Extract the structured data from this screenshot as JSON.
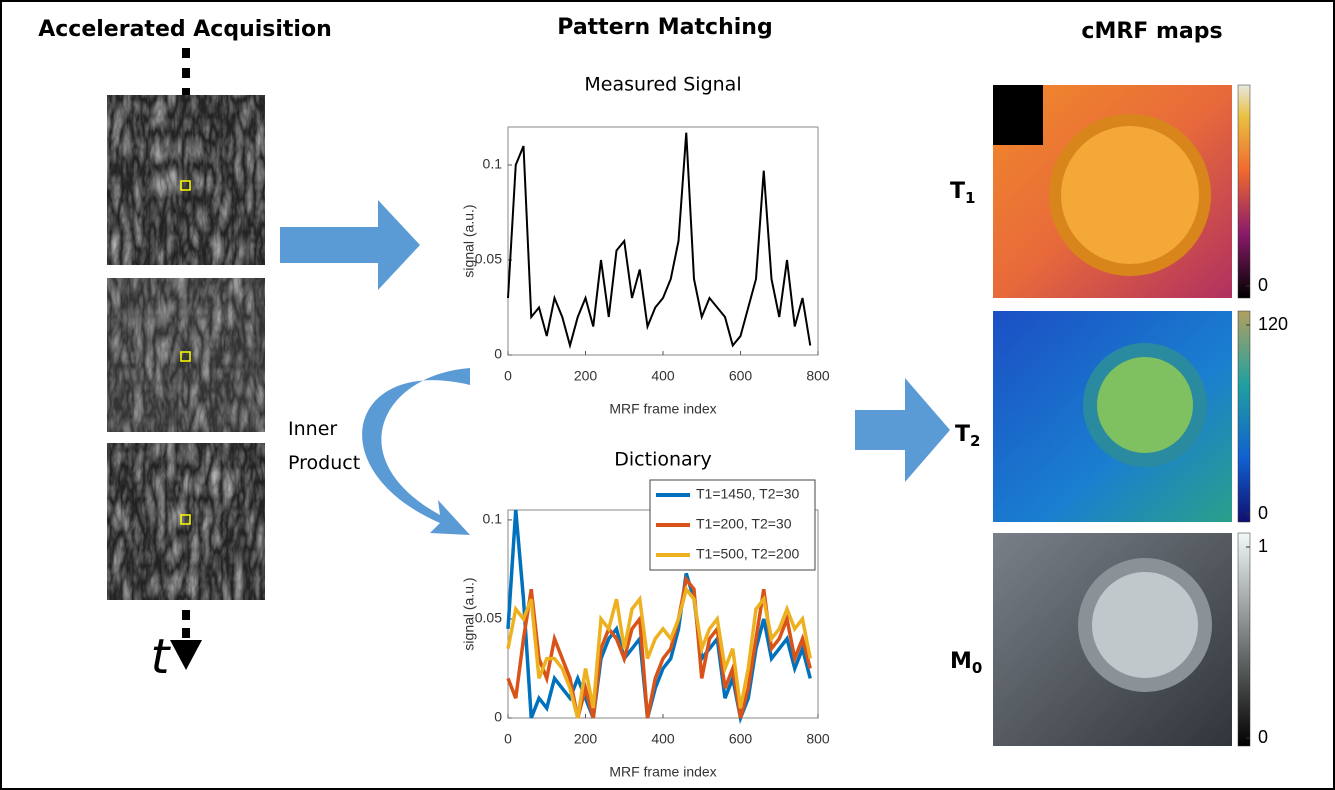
{
  "header": {
    "acquisition": "Accelerated Acquisition",
    "matching": "Pattern Matching",
    "maps": "cMRF maps"
  },
  "labels": {
    "time": "t",
    "inner_product": "Inner Product"
  },
  "charts": [
    {
      "type": "line",
      "title": "Measured Signal",
      "xlabel": "MRF frame index",
      "ylabel": "signal (a.u.)",
      "xlim": [
        0,
        800
      ],
      "ylim": [
        0,
        0.12
      ],
      "xticks": [
        0,
        200,
        400,
        600,
        800
      ],
      "yticks": [
        0,
        0.05,
        0.1
      ],
      "x": [
        0,
        20,
        40,
        60,
        80,
        100,
        120,
        140,
        160,
        180,
        200,
        220,
        240,
        260,
        280,
        300,
        320,
        340,
        360,
        380,
        400,
        420,
        440,
        460,
        480,
        500,
        520,
        540,
        560,
        580,
        600,
        620,
        640,
        660,
        680,
        700,
        720,
        740,
        760,
        780
      ],
      "series": [
        {
          "color": "#000000",
          "values": [
            0.03,
            0.1,
            0.11,
            0.02,
            0.025,
            0.01,
            0.03,
            0.02,
            0.005,
            0.02,
            0.03,
            0.015,
            0.05,
            0.02,
            0.055,
            0.06,
            0.03,
            0.045,
            0.015,
            0.025,
            0.03,
            0.04,
            0.06,
            0.117,
            0.04,
            0.02,
            0.03,
            0.025,
            0.02,
            0.005,
            0.01,
            0.025,
            0.04,
            0.097,
            0.04,
            0.02,
            0.05,
            0.015,
            0.03,
            0.005
          ]
        }
      ]
    },
    {
      "type": "line",
      "title": "Dictionary",
      "xlabel": "MRF frame index",
      "ylabel": "signal (a.u.)",
      "xlim": [
        0,
        800
      ],
      "ylim": [
        0,
        0.105
      ],
      "xticks": [
        0,
        200,
        400,
        600,
        800
      ],
      "yticks": [
        0,
        0.05,
        0.1
      ],
      "legend": "upper right",
      "x": [
        0,
        20,
        40,
        60,
        80,
        100,
        120,
        140,
        160,
        180,
        200,
        220,
        240,
        260,
        280,
        300,
        320,
        340,
        360,
        380,
        400,
        420,
        440,
        460,
        480,
        500,
        520,
        540,
        560,
        580,
        600,
        620,
        640,
        660,
        680,
        700,
        720,
        740,
        760,
        780
      ],
      "series": [
        {
          "name": "T1=1450, T2=30",
          "color": "#0072bd",
          "values": [
            0.045,
            0.105,
            0.06,
            0.0,
            0.01,
            0.005,
            0.02,
            0.015,
            0.01,
            0.02,
            0.01,
            0.0,
            0.03,
            0.04,
            0.045,
            0.03,
            0.035,
            0.04,
            0.0,
            0.015,
            0.025,
            0.03,
            0.045,
            0.073,
            0.06,
            0.03,
            0.035,
            0.04,
            0.01,
            0.02,
            0.0,
            0.01,
            0.035,
            0.05,
            0.03,
            0.035,
            0.04,
            0.025,
            0.035,
            0.02
          ]
        },
        {
          "name": "T1=200, T2=30",
          "color": "#d95319",
          "values": [
            0.02,
            0.01,
            0.04,
            0.065,
            0.03,
            0.02,
            0.04,
            0.03,
            0.02,
            0.0,
            0.015,
            0.0,
            0.035,
            0.045,
            0.04,
            0.03,
            0.045,
            0.05,
            0.0,
            0.02,
            0.03,
            0.035,
            0.05,
            0.07,
            0.065,
            0.02,
            0.04,
            0.045,
            0.015,
            0.025,
            0.0,
            0.015,
            0.04,
            0.065,
            0.035,
            0.04,
            0.05,
            0.03,
            0.04,
            0.025
          ]
        },
        {
          "name": "T1=500, T2=200",
          "color": "#edb120",
          "values": [
            0.035,
            0.055,
            0.05,
            0.06,
            0.02,
            0.03,
            0.03,
            0.025,
            0.015,
            0.0,
            0.025,
            0.005,
            0.05,
            0.045,
            0.06,
            0.035,
            0.055,
            0.06,
            0.03,
            0.04,
            0.045,
            0.04,
            0.05,
            0.065,
            0.06,
            0.035,
            0.045,
            0.05,
            0.025,
            0.035,
            0.005,
            0.025,
            0.055,
            0.06,
            0.04,
            0.045,
            0.055,
            0.045,
            0.05,
            0.03
          ]
        }
      ]
    }
  ],
  "maps": [
    {
      "symbol": "T",
      "subscript": "1",
      "colorbar_ticks": [
        0
      ]
    },
    {
      "symbol": "T",
      "subscript": "2",
      "colorbar_range": [
        0,
        120
      ],
      "colorbar_ticks": [
        0,
        120
      ]
    },
    {
      "symbol": "M",
      "subscript": "0",
      "colorbar_range": [
        0,
        1
      ],
      "colorbar_ticks": [
        0,
        1
      ]
    }
  ]
}
